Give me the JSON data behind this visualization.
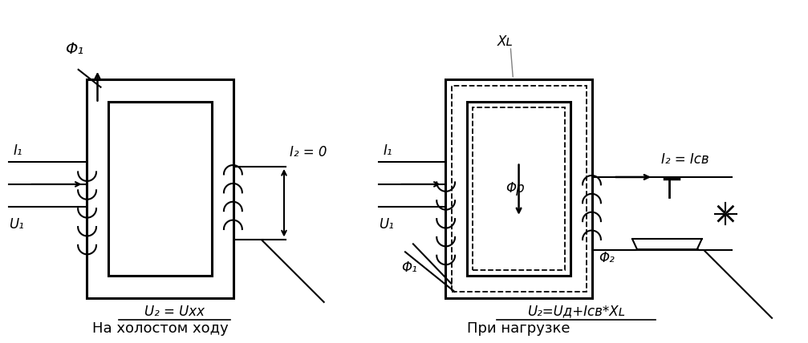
{
  "bg_color": "#ffffff",
  "line_color": "#000000",
  "fig_width": 10.07,
  "fig_height": 4.28,
  "dpi": 100,
  "label1": "На холостом ходу",
  "label2": "При нагрузке",
  "text_phi1_left": "Φ₁",
  "text_I1_left": "I₁",
  "text_U1_left": "U₁",
  "text_I2_0": "I₂ = 0",
  "text_U2_xx": "U₂ = Uхх",
  "text_XL": "Xʟ",
  "text_I1_right": "I₁",
  "text_U1_right": "U₁",
  "text_phi_p": "Φр",
  "text_phi1_right": "Φ₁",
  "text_phi2_right": "Φ₂",
  "text_I2_Icb": "I₂ = Iсв",
  "text_U2_eq": "U₂=Uд+Iсв*Xʟ"
}
